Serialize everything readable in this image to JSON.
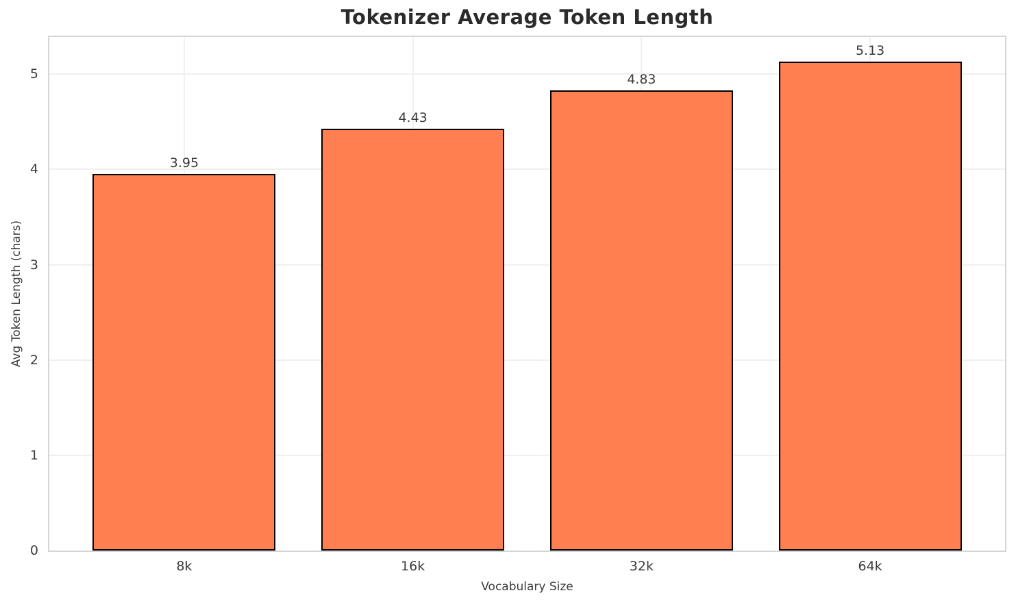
{
  "chart_data": {
    "type": "bar",
    "title": "Tokenizer Average Token Length",
    "xlabel": "Vocabulary Size",
    "ylabel": "Avg Token Length (chars)",
    "categories": [
      "8k",
      "16k",
      "32k",
      "64k"
    ],
    "values": [
      3.95,
      4.43,
      4.83,
      5.13
    ],
    "value_labels": [
      "3.95",
      "4.43",
      "4.83",
      "5.13"
    ],
    "yticks": [
      0,
      1,
      2,
      3,
      4,
      5
    ],
    "ytick_labels": [
      "0",
      "1",
      "2",
      "3",
      "4",
      "5"
    ],
    "ylim": [
      0,
      5.39
    ],
    "xlim": [
      -0.59,
      3.59
    ],
    "bar_width": 0.8,
    "grid": true,
    "legend_position": "none",
    "bar_color": "#FF7F50",
    "bar_edge_color": "#000000",
    "grid_color": "#f0f0f0",
    "spine_color": "#d5d5d5",
    "title_color": "#2b2b2b",
    "label_color": "#3c3c3c"
  }
}
